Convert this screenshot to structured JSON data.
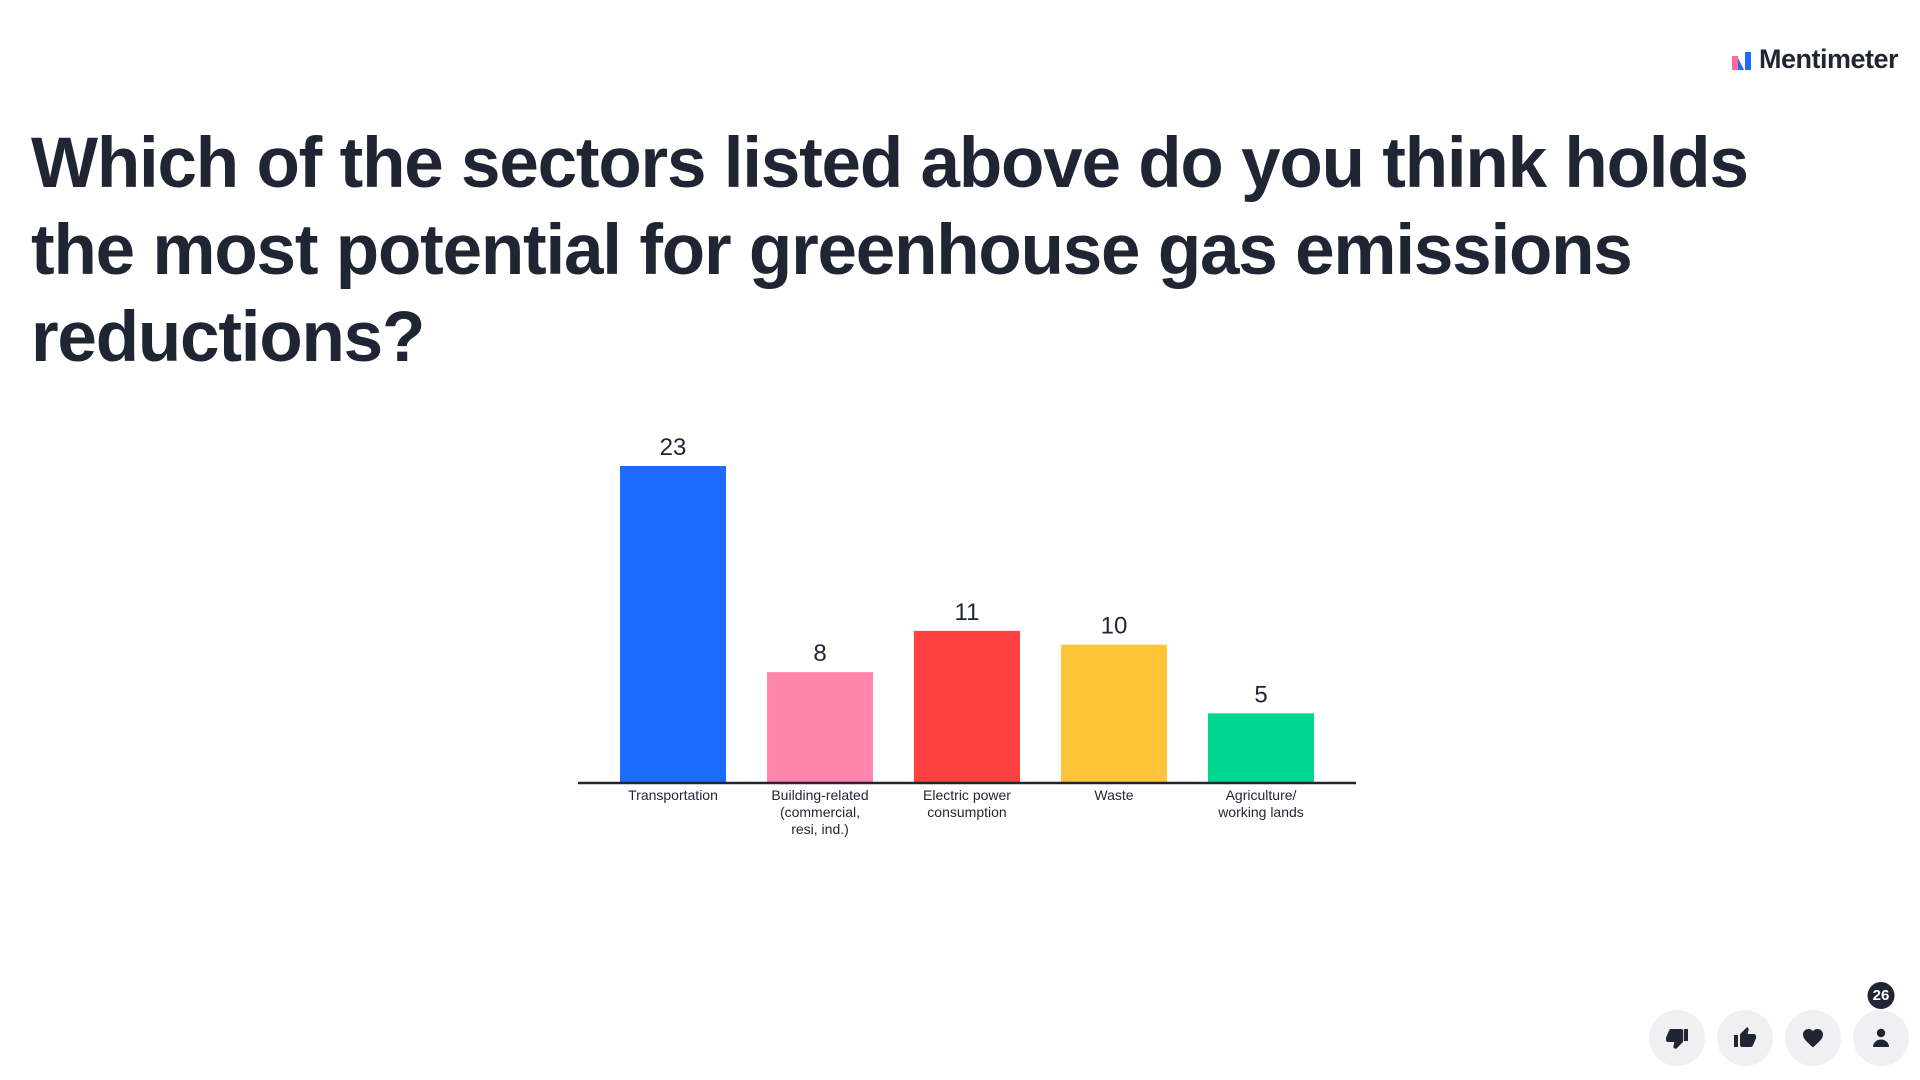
{
  "brand": {
    "name": "Mentimeter",
    "logo_colors": [
      "#FF6B9A",
      "#1C6BFF"
    ]
  },
  "question": {
    "text": "Which of the sectors listed above do you think holds the most potential for greenhouse gas emissions reductions?"
  },
  "chart_data": {
    "type": "bar",
    "categories": [
      [
        "Transportation"
      ],
      [
        "Building-related",
        "(commercial,",
        "resi, ind.)"
      ],
      [
        "Electric power",
        "consumption"
      ],
      [
        "Waste"
      ],
      [
        "Agriculture/",
        "working lands"
      ]
    ],
    "values": [
      23,
      8,
      11,
      10,
      5
    ],
    "colors": [
      "#1C6BFF",
      "#FF85AD",
      "#FF4040",
      "#FFC43A",
      "#00D68F"
    ],
    "ylim": [
      0,
      23
    ],
    "grid": false,
    "legend": "none"
  },
  "participants": {
    "count": "26"
  },
  "reactions": [
    {
      "icon": "thumbs-down-icon"
    },
    {
      "icon": "thumbs-up-icon"
    },
    {
      "icon": "heart-icon"
    },
    {
      "icon": "person-icon"
    }
  ]
}
